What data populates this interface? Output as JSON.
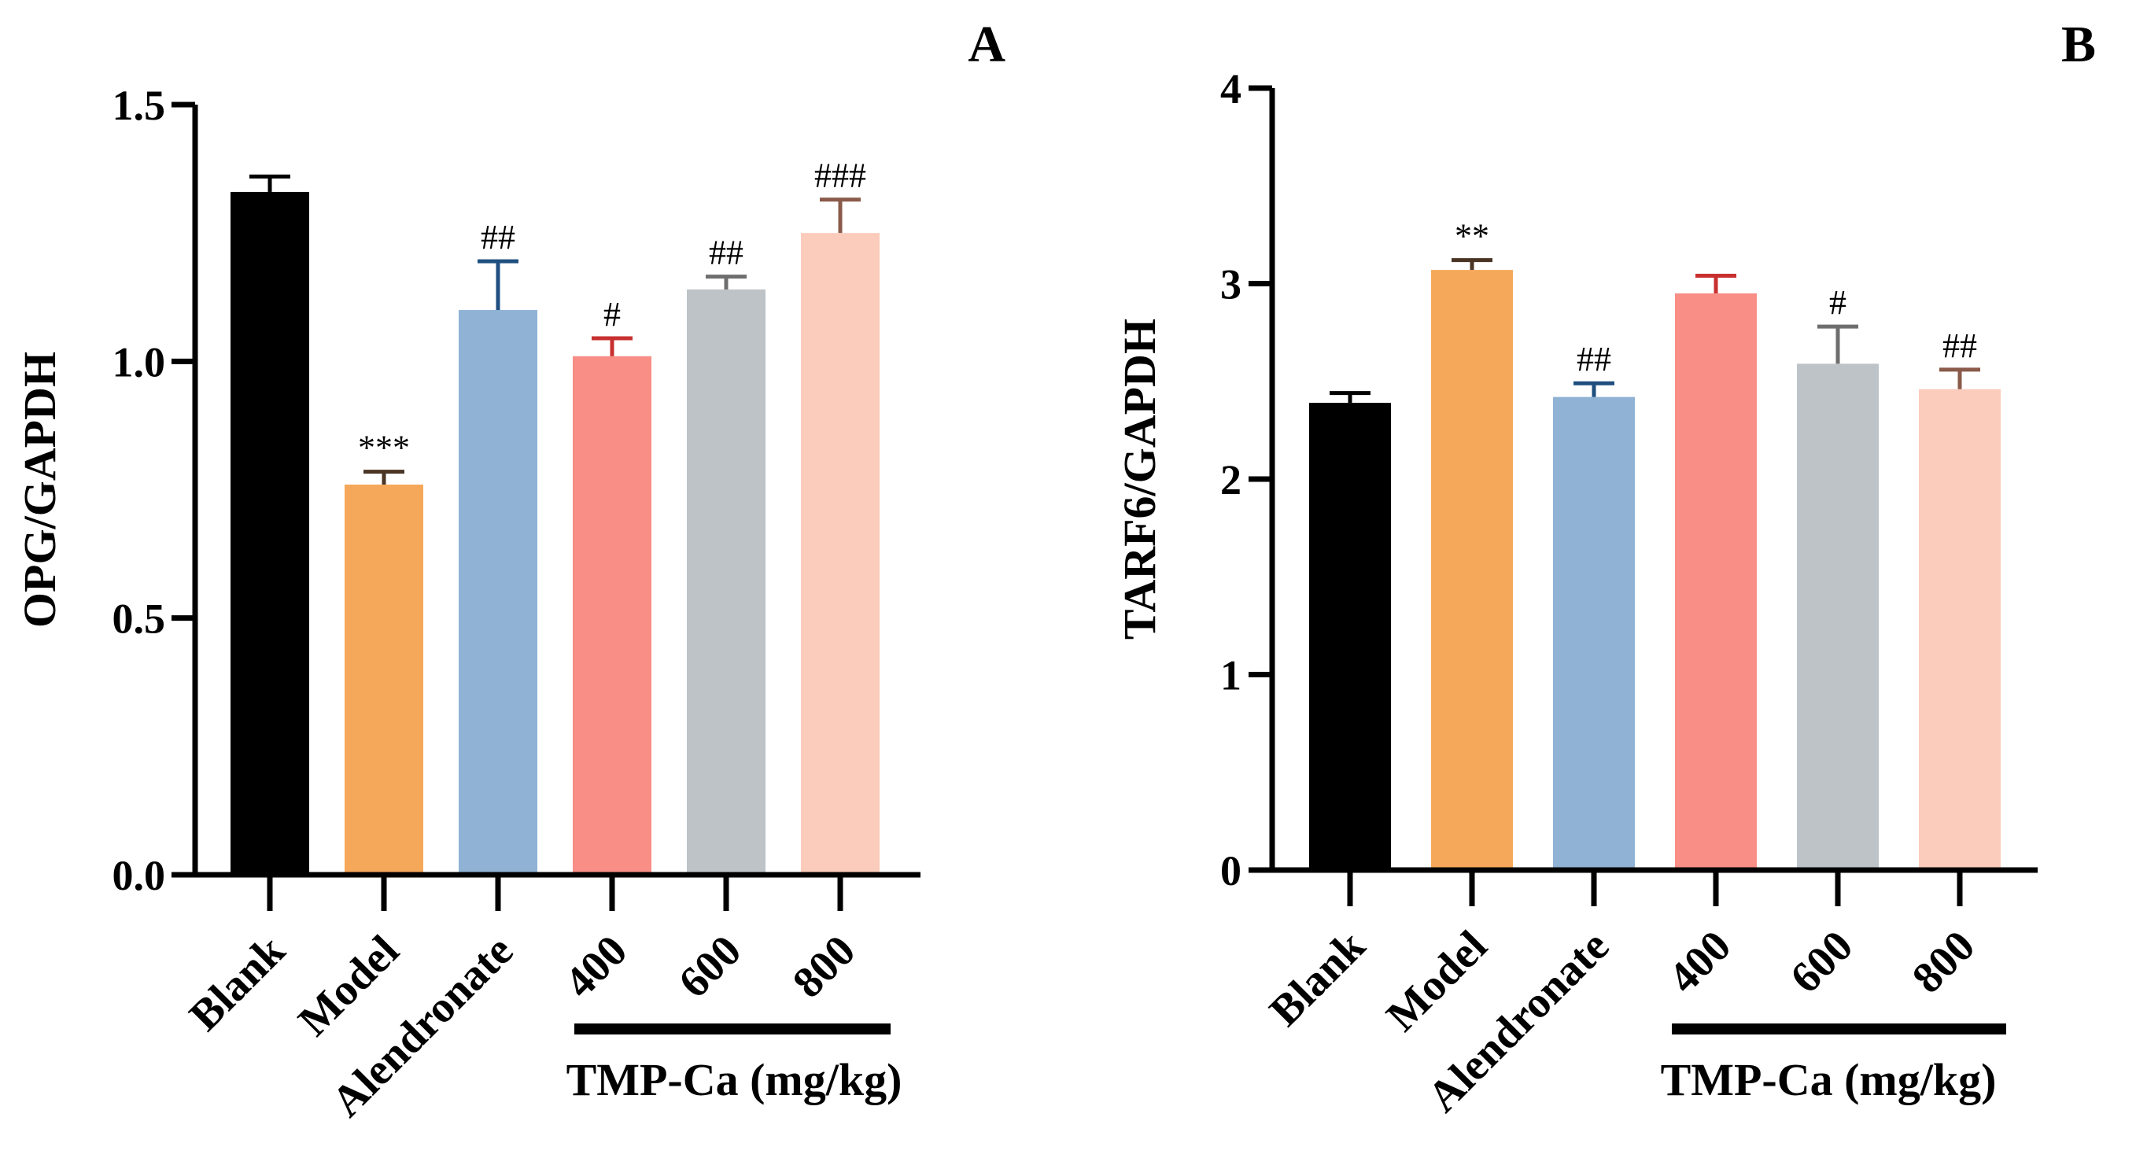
{
  "chart_data": [
    {
      "type": "bar",
      "panel": "A",
      "ylabel": "OPG/GAPDH",
      "ylim": [
        0,
        1.5
      ],
      "yticks": [
        0.0,
        0.5,
        1.0,
        1.5
      ],
      "ytick_labels": [
        "0.0",
        "0.5",
        "1.0",
        "1.5"
      ],
      "categories": [
        "Blank",
        "Model",
        "Alendronate",
        "400",
        "600",
        "800"
      ],
      "values": [
        1.33,
        0.76,
        1.1,
        1.01,
        1.14,
        1.25
      ],
      "errors": [
        0.03,
        0.025,
        0.095,
        0.035,
        0.025,
        0.065
      ],
      "significance": [
        "",
        "***",
        "##",
        "#",
        "##",
        "###"
      ],
      "colors": [
        "#000000",
        "#f6a85a",
        "#8fb2d5",
        "#f88e86",
        "#bdc3c7",
        "#fbcbbb"
      ],
      "error_colors": [
        "#000000",
        "#4a3524",
        "#1f4f7f",
        "#c82f2f",
        "#6e6e6e",
        "#8a5a4a"
      ],
      "group_label": "TMP-Ca (mg/kg)"
    },
    {
      "type": "bar",
      "panel": "B",
      "ylabel": "TARF6/GAPDH",
      "ylim": [
        0,
        4
      ],
      "yticks": [
        0,
        1,
        2,
        3,
        4
      ],
      "ytick_labels": [
        "0",
        "1",
        "2",
        "3",
        "4"
      ],
      "categories": [
        "Blank",
        "Model",
        "Alendronate",
        "400",
        "600",
        "800"
      ],
      "values": [
        2.39,
        3.07,
        2.42,
        2.95,
        2.59,
        2.46
      ],
      "errors": [
        0.05,
        0.05,
        0.07,
        0.09,
        0.19,
        0.1
      ],
      "significance": [
        "",
        "**",
        "##",
        "",
        "#",
        "##"
      ],
      "colors": [
        "#000000",
        "#f6a85a",
        "#8fb2d5",
        "#f88e86",
        "#bdc3c7",
        "#fbcbbb"
      ],
      "error_colors": [
        "#000000",
        "#4a3524",
        "#1f4f7f",
        "#c82f2f",
        "#6e6e6e",
        "#8a5a4a"
      ],
      "group_label": "TMP-Ca (mg/kg)"
    }
  ]
}
